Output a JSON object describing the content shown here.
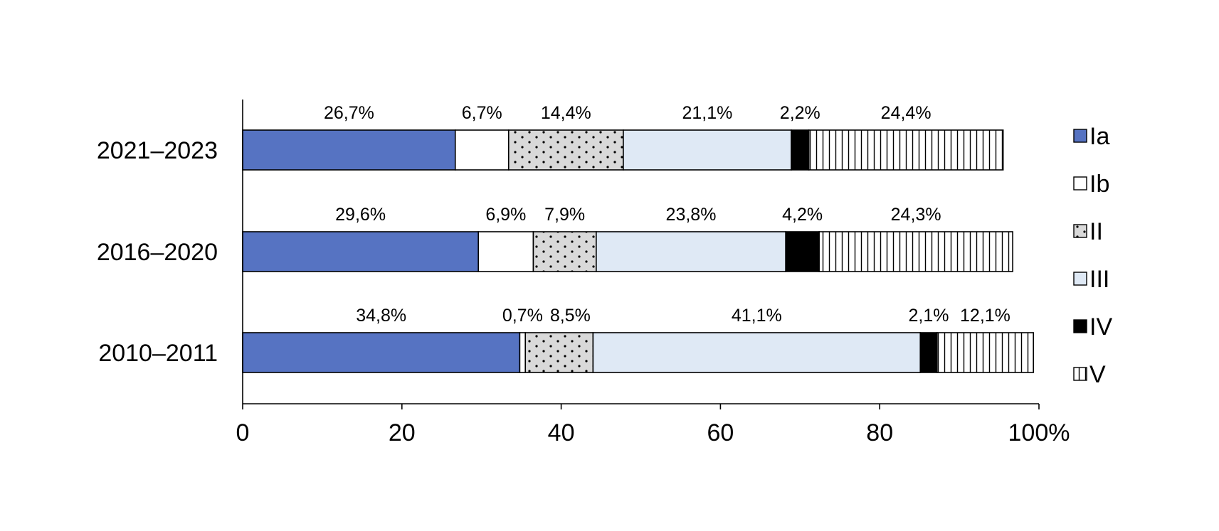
{
  "chart_data": {
    "type": "bar",
    "orientation": "horizontal",
    "stacked": true,
    "title": "",
    "xlabel": "",
    "ylabel": "",
    "xlim": [
      0,
      100
    ],
    "x_ticks": [
      "0",
      "20",
      "40",
      "60",
      "80",
      "100%"
    ],
    "x_tick_values": [
      0,
      20,
      40,
      60,
      80,
      100
    ],
    "grid": false,
    "legend_position": "right",
    "categories": [
      "2021–2023",
      "2016–2020",
      "2010–2011"
    ],
    "series": [
      {
        "name": "Ia",
        "values": [
          26.7,
          29.6,
          34.8
        ],
        "labels": [
          "26,7%",
          "29,6%",
          "34,8%"
        ],
        "color": "#5673c2",
        "pattern": "solid"
      },
      {
        "name": "Ib",
        "values": [
          6.7,
          6.9,
          0.7
        ],
        "labels": [
          "6,7%",
          "6,9%",
          "0,7%"
        ],
        "color": "#ffffff",
        "pattern": "solid"
      },
      {
        "name": "II",
        "values": [
          14.4,
          7.9,
          8.5
        ],
        "labels": [
          "14,4%",
          "7,9%",
          "8,5%"
        ],
        "color": "#d9d9d9",
        "pattern": "dots"
      },
      {
        "name": "III",
        "values": [
          21.1,
          23.8,
          41.1
        ],
        "labels": [
          "21,1%",
          "23,8%",
          "41,1%"
        ],
        "color": "#dfe9f5",
        "pattern": "solid"
      },
      {
        "name": "IV",
        "values": [
          2.2,
          4.2,
          2.1
        ],
        "labels": [
          "2,2%",
          "4,2%",
          "2,1%"
        ],
        "color": "#000000",
        "pattern": "solid"
      },
      {
        "name": "V",
        "values": [
          24.4,
          24.3,
          12.1
        ],
        "labels": [
          "24,4%",
          "24,3%",
          "12,1%"
        ],
        "color": "#ffffff",
        "pattern": "vlines"
      }
    ]
  }
}
